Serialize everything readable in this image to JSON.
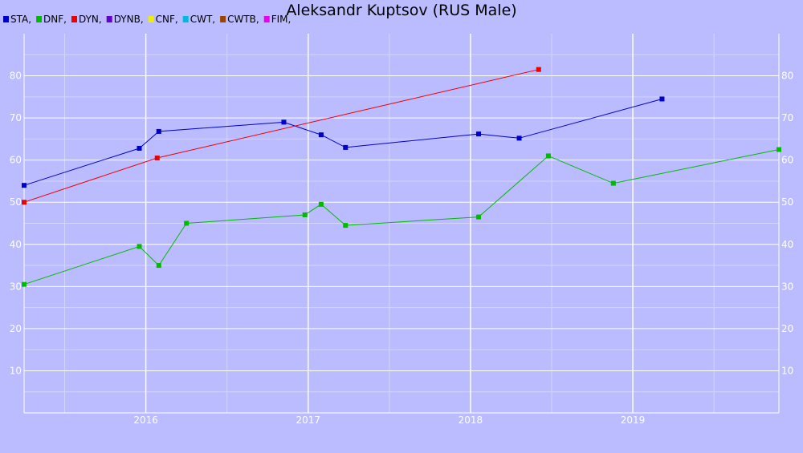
{
  "chart_data": {
    "type": "line",
    "title": "Aleksandr Kuptsov (RUS Male)",
    "legend": [
      {
        "label": "STA,",
        "color": "#0000CC"
      },
      {
        "label": "DNF,",
        "color": "#00BB00"
      },
      {
        "label": "DYN,",
        "color": "#EE0000"
      },
      {
        "label": "DYNB,",
        "color": "#6600CC"
      },
      {
        "label": "CNF,",
        "color": "#EEEE00"
      },
      {
        "label": "CWT,",
        "color": "#00BBDD"
      },
      {
        "label": "CWTB,",
        "color": "#994400"
      },
      {
        "label": "FIM,",
        "color": "#EE00EE"
      }
    ],
    "legend_placement": "top-left",
    "grid": true,
    "xlim": [
      2015.25,
      2019.9
    ],
    "ylim": [
      0,
      90
    ],
    "x_ticks": [
      2016,
      2017,
      2018,
      2019
    ],
    "y_ticks": [
      10,
      20,
      30,
      40,
      50,
      60,
      70,
      80
    ],
    "series": [
      {
        "name": "STA",
        "color": "#0000CC",
        "points": [
          [
            2015.25,
            54.0
          ],
          [
            2015.96,
            62.8
          ],
          [
            2016.08,
            66.8
          ],
          [
            2016.85,
            69.0
          ],
          [
            2017.08,
            66.0
          ],
          [
            2017.23,
            63.0
          ],
          [
            2018.05,
            66.2
          ],
          [
            2018.3,
            65.2
          ],
          [
            2019.18,
            74.5
          ]
        ]
      },
      {
        "name": "DNF",
        "color": "#00BB00",
        "points": [
          [
            2015.25,
            30.5
          ],
          [
            2015.96,
            39.5
          ],
          [
            2016.08,
            35.0
          ],
          [
            2016.25,
            45.0
          ],
          [
            2016.98,
            47.0
          ],
          [
            2017.08,
            49.5
          ],
          [
            2017.23,
            44.5
          ],
          [
            2018.05,
            46.5
          ],
          [
            2018.48,
            61.0
          ],
          [
            2018.88,
            54.5
          ],
          [
            2019.9,
            62.5
          ]
        ]
      },
      {
        "name": "DYN",
        "color": "#EE0000",
        "points": [
          [
            2015.25,
            50.0
          ],
          [
            2016.07,
            60.5
          ],
          [
            2018.42,
            81.5
          ]
        ]
      }
    ]
  }
}
